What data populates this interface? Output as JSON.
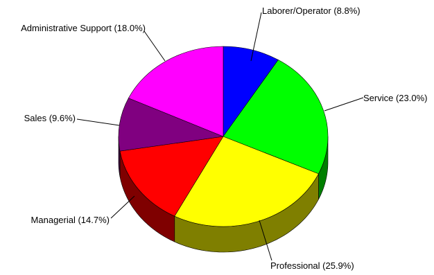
{
  "chart_data": {
    "type": "pie",
    "title": "",
    "slices": [
      {
        "label": "Laborer/Operator (8.8%)",
        "value": 8.8,
        "color": "#0000ff",
        "side_color": "#00007f"
      },
      {
        "label": "Service (23.0%)",
        "value": 23.0,
        "color": "#00ff00",
        "side_color": "#007f00"
      },
      {
        "label": "Professional (25.9%)",
        "value": 25.9,
        "color": "#ffff00",
        "side_color": "#7f7f00"
      },
      {
        "label": "Managerial (14.7%)",
        "value": 14.7,
        "color": "#ff0000",
        "side_color": "#7f0000"
      },
      {
        "label": "Sales (9.6%)",
        "value": 9.6,
        "color": "#800080",
        "side_color": "#400040"
      },
      {
        "label": "Administrative Support (18.0%)",
        "value": 18.0,
        "color": "#ff00ff",
        "side_color": "#7f007f"
      }
    ],
    "start_angle": "12 o'clock",
    "direction": "clockwise",
    "style": "3d"
  }
}
